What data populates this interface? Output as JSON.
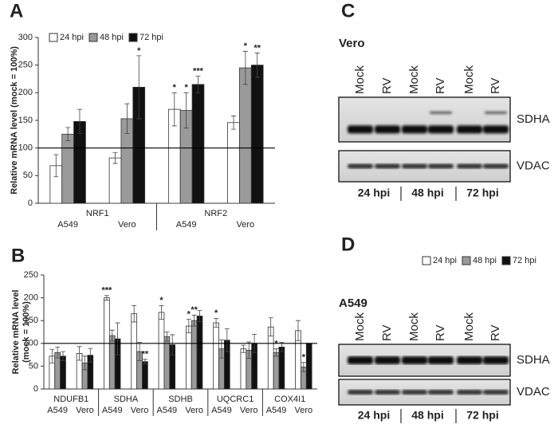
{
  "chart_data": [
    {
      "type": "bar",
      "label": "A",
      "ylabel": "Relative mRNA level (mock = 100%)",
      "groups": [
        "NRF1",
        "NRF2"
      ],
      "categories": [
        "A549",
        "Vero",
        "A549",
        "Vero"
      ],
      "series": [
        {
          "name": "24 hpi",
          "color": "#ffffff",
          "values": [
            68,
            82,
            170,
            146
          ],
          "errors": [
            20,
            10,
            30,
            12
          ],
          "significance": [
            null,
            null,
            "*",
            null
          ]
        },
        {
          "name": "48 hpi",
          "color": "#9a9a9a",
          "values": [
            125,
            153,
            168,
            245
          ],
          "errors": [
            12,
            27,
            32,
            30
          ],
          "significance": [
            null,
            null,
            "*",
            "*"
          ]
        },
        {
          "name": "72 hpi",
          "color": "#111111",
          "values": [
            148,
            210,
            215,
            250
          ],
          "errors": [
            22,
            57,
            15,
            22
          ],
          "significance": [
            null,
            "*",
            "***",
            "**"
          ]
        }
      ],
      "ylim": [
        0,
        300
      ],
      "yticks": [
        0,
        50,
        100,
        150,
        200,
        250,
        300
      ],
      "hline": 100,
      "legend": "top"
    },
    {
      "type": "bar",
      "label": "B",
      "ylabel": [
        "Relative mRNA level",
        "(mock = 100%)"
      ],
      "groups": [
        "NDUFB1",
        "SDHA",
        "SDHB",
        "UQCRC1",
        "COX4I1"
      ],
      "categories": [
        "A549",
        "Vero",
        "A549",
        "Vero",
        "A549",
        "Vero",
        "A549",
        "Vero",
        "A549",
        "Vero"
      ],
      "series": [
        {
          "name": "24 hpi",
          "color": "#ffffff",
          "values": [
            72,
            78,
            200,
            165,
            168,
            138,
            145,
            88,
            136,
            128
          ],
          "errors": [
            15,
            15,
            5,
            18,
            15,
            15,
            10,
            8,
            20,
            22
          ],
          "significance": [
            null,
            null,
            "***",
            null,
            "*",
            "*",
            "*",
            null,
            null,
            null
          ]
        },
        {
          "name": "48 hpi",
          "color": "#9a9a9a",
          "values": [
            80,
            57,
            117,
            82,
            115,
            150,
            88,
            85,
            80,
            48
          ],
          "errors": [
            12,
            15,
            12,
            20,
            10,
            12,
            20,
            18,
            8,
            10
          ],
          "significance": [
            null,
            null,
            null,
            null,
            null,
            "**",
            null,
            null,
            "*",
            "*"
          ]
        },
        {
          "name": "72 hpi",
          "color": "#111111",
          "values": [
            72,
            74,
            110,
            60,
            97,
            160,
            107,
            100,
            92,
            100
          ],
          "errors": [
            10,
            15,
            35,
            5,
            22,
            12,
            25,
            20,
            10,
            0
          ],
          "significance": [
            null,
            null,
            null,
            "**",
            null,
            null,
            null,
            null,
            null,
            null
          ]
        }
      ],
      "ylim": [
        0,
        250
      ],
      "yticks": [
        0,
        50,
        100,
        150,
        200,
        250
      ],
      "hline": 100,
      "legend": "top-right"
    }
  ],
  "blots": [
    {
      "label": "C",
      "cell_line": "Vero",
      "lanes": [
        "Mock",
        "RV",
        "Mock",
        "RV",
        "Mock",
        "RV"
      ],
      "bands": [
        "SDHA",
        "VDAC"
      ],
      "timepoints": [
        "24 hpi",
        "48 hpi",
        "72 hpi"
      ]
    },
    {
      "label": "D",
      "cell_line": "A549",
      "lanes": [
        "Mock",
        "RV",
        "Mock",
        "RV",
        "Mock",
        "RV"
      ],
      "bands": [
        "SDHA",
        "VDAC"
      ],
      "timepoints": [
        "24 hpi",
        "48 hpi",
        "72 hpi"
      ]
    }
  ]
}
